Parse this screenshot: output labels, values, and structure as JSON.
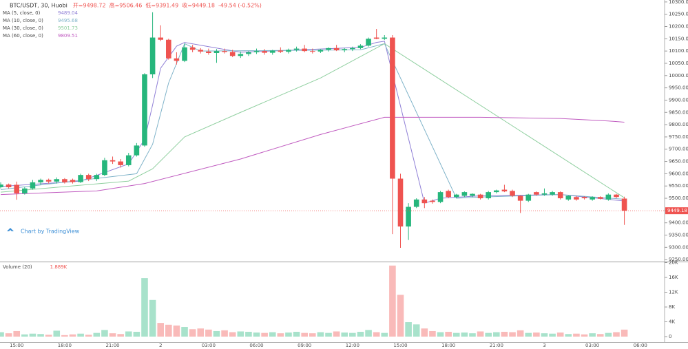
{
  "chart_data": {
    "type": "candlestick",
    "title": "BTC/USDT, 30, Huobi",
    "header_items": [
      "开=9498.72",
      "高=9506.46",
      "低=9391.49",
      "收=9449.18",
      "-49.54 (-0.52%)"
    ],
    "watermark": "Chart by TradingView",
    "up_color": "#26b67c",
    "down_color": "#ef5350",
    "categories": [
      null,
      null,
      "15:00",
      null,
      null,
      null,
      null,
      null,
      "18:00",
      null,
      null,
      null,
      null,
      null,
      "21:00",
      null,
      null,
      null,
      null,
      null,
      "2",
      null,
      null,
      null,
      null,
      null,
      "03:00",
      null,
      null,
      null,
      null,
      null,
      "06:00",
      null,
      null,
      null,
      null,
      null,
      "09:00",
      null,
      null,
      null,
      null,
      null,
      "12:00",
      null,
      null,
      null,
      null,
      null,
      "15:00",
      null,
      null,
      null,
      null,
      null,
      "18:00",
      null,
      null,
      null,
      null,
      null,
      "21:00",
      null,
      null,
      null,
      null,
      null,
      "3",
      null,
      null,
      null,
      null,
      null,
      "03:00",
      null,
      null,
      null,
      null,
      null,
      "06:00"
    ],
    "open": [
      9545,
      9556,
      9555,
      9520,
      9540,
      9565,
      9575,
      9568,
      9578,
      9575,
      9566,
      9595,
      9578,
      9595,
      9655,
      9650,
      9635,
      9675,
      9715,
      10005,
      10155,
      10146,
      10070,
      10060,
      10115,
      10105,
      10098,
      10092,
      10100,
      10096,
      10080,
      10088,
      10095,
      10100,
      10093,
      10102,
      10097,
      10105,
      10110,
      10100,
      10098,
      10105,
      10112,
      10103,
      10108,
      10112,
      10122,
      10155,
      10150,
      10155,
      9580,
      9385,
      9465,
      9495,
      9490,
      9485,
      9530,
      9505,
      9510,
      9510,
      9515,
      9500,
      9525,
      9535,
      9530,
      9510,
      9490,
      9525,
      9515,
      9515,
      9525,
      9495,
      9505,
      9505,
      9495,
      9505,
      9495,
      9515,
      9498.72,
      null,
      null
    ],
    "high": [
      9565,
      9560,
      9568,
      9545,
      9575,
      9580,
      9580,
      9585,
      9582,
      9580,
      9600,
      9600,
      9600,
      9665,
      9670,
      9660,
      9685,
      9725,
      10010,
      10258,
      10205,
      10150,
      10095,
      10130,
      10125,
      10112,
      10110,
      10108,
      10110,
      10105,
      10098,
      10100,
      10110,
      10108,
      10105,
      10115,
      10110,
      10118,
      10125,
      10110,
      10108,
      10115,
      10125,
      10112,
      10118,
      10128,
      10155,
      10190,
      10165,
      10165,
      9600,
      9480,
      9500,
      9505,
      9495,
      9530,
      9535,
      9518,
      9528,
      9520,
      9518,
      9530,
      9535,
      9555,
      9535,
      9512,
      9518,
      9528,
      9540,
      9530,
      9528,
      9512,
      9510,
      9508,
      9508,
      9508,
      9520,
      9518,
      9506.46,
      null,
      null
    ],
    "low": [
      9540,
      9540,
      9494,
      9515,
      9535,
      9555,
      9560,
      9560,
      9560,
      9560,
      9562,
      9570,
      9570,
      9590,
      9640,
      9625,
      9630,
      9670,
      9710,
      9990,
      10140,
      10065,
      10045,
      10055,
      10095,
      10090,
      10085,
      10052,
      10090,
      10075,
      10072,
      10080,
      10088,
      10085,
      10085,
      10092,
      10090,
      10098,
      10095,
      10090,
      10092,
      10098,
      10100,
      10095,
      10100,
      10108,
      10118,
      10148,
      10145,
      9354,
      9298,
      9330,
      9460,
      9460,
      9478,
      9480,
      9500,
      9500,
      9505,
      9505,
      9495,
      9495,
      9520,
      9525,
      9505,
      9440,
      9485,
      9510,
      9510,
      9510,
      9495,
      9490,
      9490,
      9495,
      9490,
      9495,
      9490,
      9500,
      9391.49,
      null,
      null
    ],
    "close": [
      9556,
      9545,
      9520,
      9540,
      9565,
      9575,
      9568,
      9578,
      9565,
      9566,
      9595,
      9578,
      9595,
      9655,
      9650,
      9635,
      9675,
      9715,
      10005,
      10155,
      10146,
      10070,
      10060,
      10115,
      10105,
      10098,
      10092,
      10100,
      10096,
      10080,
      10088,
      10095,
      10100,
      10093,
      10102,
      10097,
      10105,
      10110,
      10100,
      10098,
      10105,
      10112,
      10103,
      10108,
      10112,
      10122,
      10150,
      10150,
      10155,
      9580,
      9385,
      9465,
      9495,
      9480,
      9485,
      9525,
      9505,
      9515,
      9525,
      9518,
      9500,
      9525,
      9532,
      9528,
      9510,
      9490,
      9515,
      9515,
      9520,
      9525,
      9500,
      9510,
      9495,
      9500,
      9505,
      9498,
      9515,
      9505,
      9449.18,
      null,
      null
    ],
    "last_price_label": "9449.18",
    "ylim": [
      9242,
      10308
    ],
    "yticks": [
      {
        "value": 9250,
        "label": "9250.00"
      },
      {
        "value": 9300,
        "label": "9300.00"
      },
      {
        "value": 9350,
        "label": "9350.00"
      },
      {
        "value": 9400,
        "label": "9400.00"
      },
      {
        "value": 9450,
        "label": "9450.00"
      },
      {
        "value": 9500,
        "label": "9500.00"
      },
      {
        "value": 9550,
        "label": "9550.00"
      },
      {
        "value": 9600,
        "label": "9600.00"
      },
      {
        "value": 9650,
        "label": "9650.00"
      },
      {
        "value": 9700,
        "label": "9700.00"
      },
      {
        "value": 9750,
        "label": "9750.00"
      },
      {
        "value": 9800,
        "label": "9800.00"
      },
      {
        "value": 9850,
        "label": "9850.00"
      },
      {
        "value": 9900,
        "label": "9900.00"
      },
      {
        "value": 9950,
        "label": "9950.00"
      },
      {
        "value": 10000,
        "label": "10000.00"
      },
      {
        "value": 10050,
        "label": "10050.00"
      },
      {
        "value": 10100,
        "label": "10100.00"
      },
      {
        "value": 10150,
        "label": "10150.00"
      },
      {
        "value": 10200,
        "label": "10200.00"
      },
      {
        "value": 10250,
        "label": "10250.00"
      },
      {
        "value": 10300,
        "label": "10300.00"
      }
    ],
    "ma_series": [
      {
        "name": "MA (5, close, 0)",
        "value_label": "9489.04",
        "color": "#8f7fd6",
        "x": [
          0,
          10,
          16,
          18,
          19,
          20,
          22,
          23,
          30,
          45,
          47,
          48,
          53,
          55,
          60,
          70,
          78
        ],
        "values": [
          9548,
          9570,
          9640,
          9740,
          9880,
          10030,
          10120,
          10135,
          10095,
          10115,
          10135,
          10140,
          9480,
          9500,
          9510,
          9515,
          9489
        ]
      },
      {
        "name": "MA (10, close, 0)",
        "value_label": "9495.68",
        "color": "#7fb3c9",
        "x": [
          0,
          17,
          19,
          21,
          23,
          25,
          45,
          48,
          57,
          60,
          70,
          78
        ],
        "values": [
          9535,
          9600,
          9720,
          9970,
          10130,
          10100,
          10105,
          10130,
          9500,
          9505,
          9515,
          9496
        ]
      },
      {
        "name": "MA (30, close, 0)",
        "value_label": "9501.73",
        "color": "#8fcf9f",
        "x": [
          0,
          16,
          19,
          23,
          30,
          40,
          48,
          78
        ],
        "values": [
          9525,
          9570,
          9620,
          9750,
          9850,
          9990,
          10130,
          9502
        ]
      },
      {
        "name": "MA (60, close, 0)",
        "value_label": "9809.51",
        "color": "#c05bc0",
        "x": [
          0,
          12,
          18,
          30,
          40,
          48,
          60,
          70,
          76,
          78
        ],
        "values": [
          9515,
          9530,
          9560,
          9660,
          9760,
          9830,
          9830,
          9825,
          9815,
          9810
        ]
      }
    ],
    "volume": {
      "title": "Volume (20)",
      "value_label": "1.889K",
      "values": [
        1200,
        900,
        1500,
        600,
        800,
        700,
        500,
        1600,
        400,
        600,
        800,
        500,
        1000,
        1800,
        900,
        700,
        1400,
        1300,
        15800,
        9900,
        3700,
        3200,
        3000,
        2600,
        2000,
        2200,
        1900,
        1500,
        1700,
        1200,
        1400,
        1300,
        1100,
        1000,
        1200,
        900,
        1100,
        1300,
        1000,
        900,
        1200,
        1000,
        1400,
        1100,
        1000,
        1300,
        1800,
        1200,
        1000,
        19200,
        11300,
        3900,
        3300,
        2200,
        1500,
        1200,
        1300,
        1000,
        1100,
        900,
        1400,
        1000,
        1200,
        1300,
        1200,
        1700,
        1000,
        1100,
        900,
        800,
        1100,
        700,
        800,
        600,
        900,
        700,
        1000,
        1200,
        1889,
        null,
        null
      ],
      "ylim": [
        -1488,
        20093
      ],
      "yticks": [
        {
          "value": 0,
          "label": "0"
        },
        {
          "value": 4000,
          "label": "4K"
        },
        {
          "value": 8000,
          "label": "8K"
        },
        {
          "value": 12000,
          "label": "12K"
        },
        {
          "value": 16000,
          "label": "16K"
        },
        {
          "value": 20000,
          "label": "20K"
        }
      ]
    }
  }
}
